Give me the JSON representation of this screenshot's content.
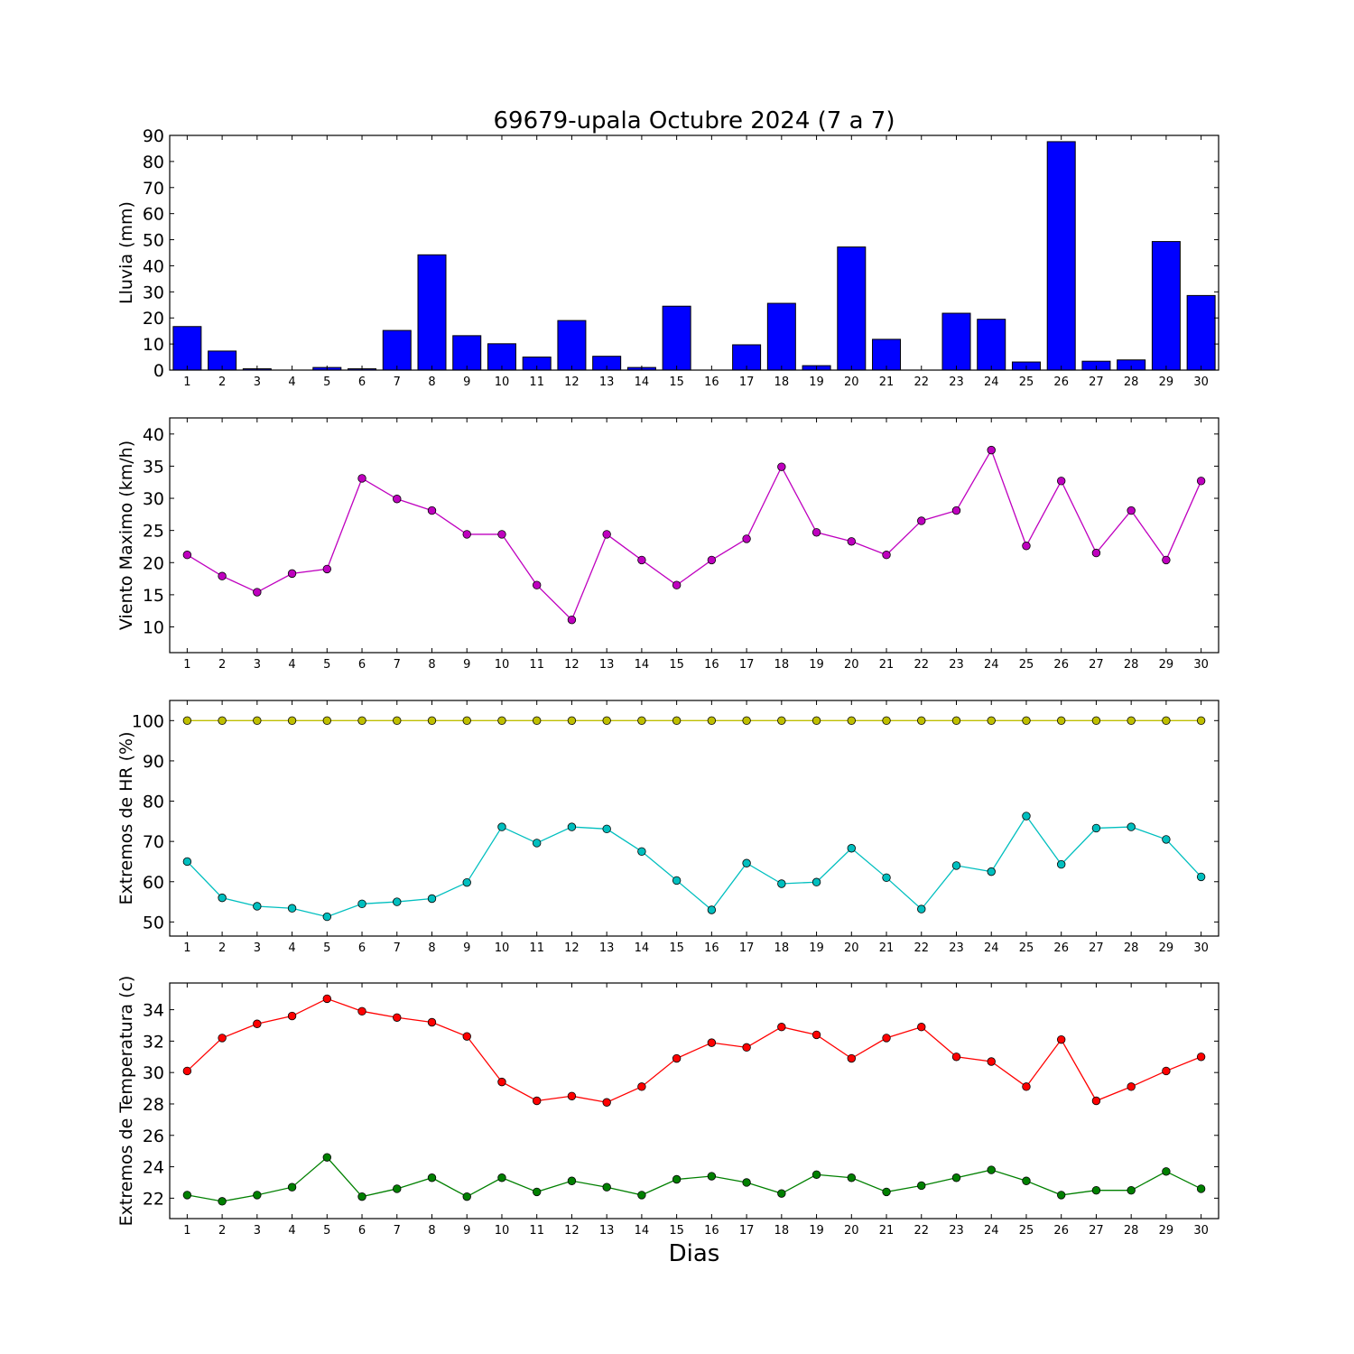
{
  "chart_data": {
    "title": "69679-upala Octubre 2024  (7 a 7)",
    "xlabel": "Dias",
    "days": [
      1,
      2,
      3,
      4,
      5,
      6,
      7,
      8,
      9,
      10,
      11,
      12,
      13,
      14,
      15,
      16,
      17,
      18,
      19,
      20,
      21,
      22,
      23,
      24,
      25,
      26,
      27,
      28,
      29,
      30
    ],
    "panels": [
      {
        "type": "bar",
        "ylabel": "Lluvia (mm)",
        "ylim": [
          0,
          90
        ],
        "yticks": [
          0,
          10,
          20,
          30,
          40,
          50,
          60,
          70,
          80,
          90
        ],
        "series": [
          {
            "color": "#0000ff",
            "values": [
              16.7,
              7.3,
              0.5,
              0,
              1.0,
              0.5,
              15.2,
              44.2,
              13.2,
              10.1,
              5.0,
              19.0,
              5.3,
              1.0,
              24.5,
              0,
              9.7,
              25.6,
              1.7,
              47.2,
              11.8,
              0,
              21.8,
              19.5,
              3.1,
              87.6,
              3.4,
              3.9,
              49.3,
              28.6
            ]
          }
        ]
      },
      {
        "type": "line",
        "ylabel": "Viento Maximo (km/h)",
        "ylim": [
          6,
          42.5
        ],
        "yticks": [
          10,
          15,
          20,
          25,
          30,
          35,
          40
        ],
        "series": [
          {
            "color": "#bf00bf",
            "values": [
              21.2,
              17.9,
              15.4,
              18.3,
              19.0,
              33.1,
              29.9,
              28.1,
              24.4,
              24.4,
              16.5,
              11.1,
              24.4,
              20.4,
              16.5,
              20.4,
              23.7,
              34.9,
              24.7,
              23.3,
              21.2,
              26.5,
              28.1,
              37.5,
              22.6,
              32.7,
              21.5,
              28.1,
              20.4,
              32.7
            ]
          }
        ]
      },
      {
        "type": "line",
        "ylabel": "Extremos de HR (%)",
        "ylim": [
          46.5,
          105
        ],
        "yticks": [
          50,
          60,
          70,
          80,
          90,
          100
        ],
        "series": [
          {
            "color": "#bfbf00",
            "values": [
              100,
              100,
              100,
              100,
              100,
              100,
              100,
              100,
              100,
              100,
              100,
              100,
              100,
              100,
              100,
              100,
              100,
              100,
              100,
              100,
              100,
              100,
              100,
              100,
              100,
              100,
              100,
              100,
              100,
              100
            ]
          },
          {
            "color": "#00bfbf",
            "values": [
              65.0,
              56.0,
              53.9,
              53.4,
              51.3,
              54.5,
              55.0,
              55.8,
              59.8,
              73.6,
              69.6,
              73.6,
              73.1,
              67.5,
              60.3,
              53.0,
              64.6,
              59.5,
              59.9,
              68.3,
              61.0,
              53.2,
              64.0,
              62.5,
              76.3,
              64.3,
              73.3,
              73.6,
              70.5,
              61.2
            ]
          }
        ]
      },
      {
        "type": "line",
        "ylabel": "Extremos de Temperatura (c)",
        "ylim": [
          20.7,
          35.7
        ],
        "yticks": [
          22,
          24,
          26,
          28,
          30,
          32,
          34
        ],
        "series": [
          {
            "color": "#ff0000",
            "values": [
              30.1,
              32.2,
              33.1,
              33.6,
              34.7,
              33.9,
              33.5,
              33.2,
              32.3,
              29.4,
              28.2,
              28.5,
              28.1,
              29.1,
              30.9,
              31.9,
              31.6,
              32.9,
              32.4,
              30.9,
              32.2,
              32.9,
              31.0,
              30.7,
              29.1,
              32.1,
              28.2,
              29.1,
              30.1,
              31.0
            ]
          },
          {
            "color": "#008000",
            "values": [
              22.2,
              21.8,
              22.2,
              22.7,
              24.6,
              22.1,
              22.6,
              23.3,
              22.1,
              23.3,
              22.4,
              23.1,
              22.7,
              22.2,
              23.2,
              23.4,
              23.0,
              22.3,
              23.5,
              23.3,
              22.4,
              22.8,
              23.3,
              23.8,
              23.1,
              22.2,
              22.5,
              22.5,
              23.7,
              22.6
            ]
          }
        ]
      }
    ]
  }
}
